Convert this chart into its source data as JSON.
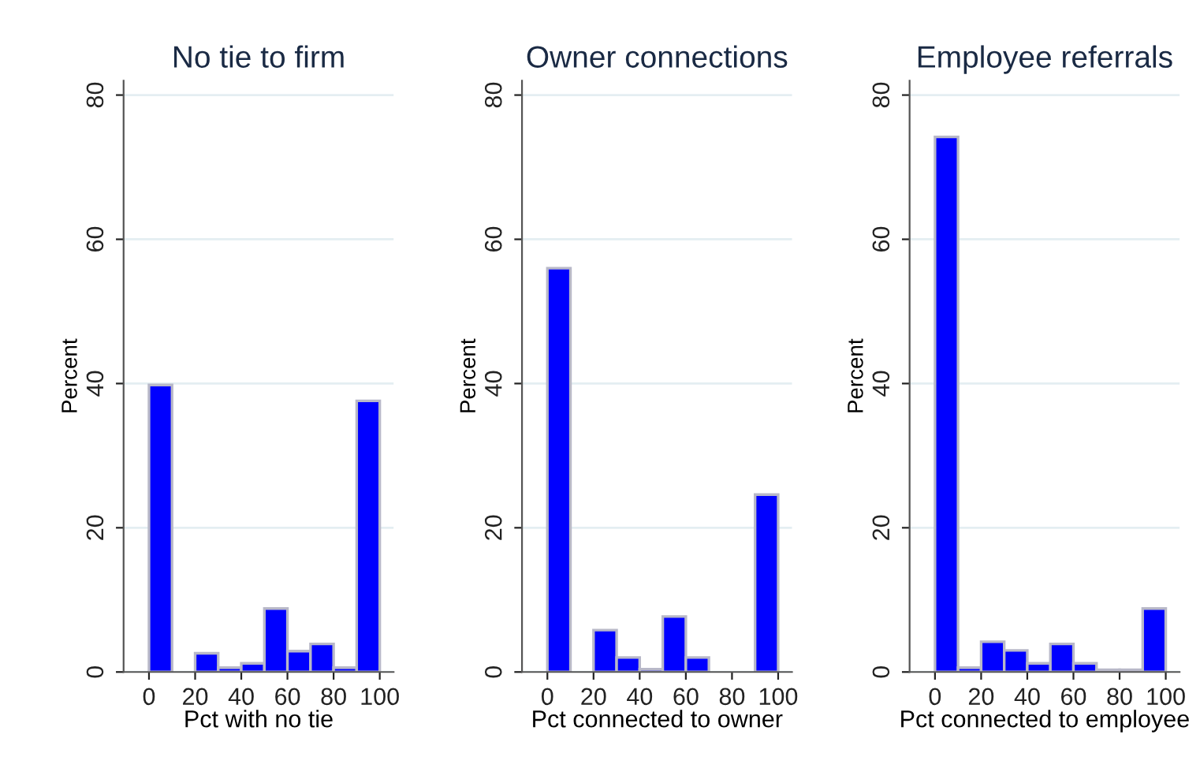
{
  "chart_data": [
    {
      "type": "histogram",
      "title": "No tie to firm",
      "xlabel": "Pct with no tie",
      "ylabel": "Percent",
      "bins": [
        0,
        10,
        20,
        30,
        40,
        50,
        60,
        70,
        80,
        90,
        100
      ],
      "values": [
        39.8,
        0,
        2.6,
        0.6,
        1.2,
        8.8,
        2.9,
        3.9,
        0.6,
        37.6
      ],
      "color": "#0000ff",
      "xlim": [
        -11,
        106
      ],
      "xticks": [
        0,
        20,
        40,
        60,
        80,
        100
      ],
      "ylim": [
        0,
        82
      ],
      "yticks": [
        0,
        20,
        40,
        60,
        80
      ],
      "grid": "y"
    },
    {
      "type": "histogram",
      "title": "Owner connections",
      "xlabel": "Pct connected to owner",
      "ylabel": "Percent",
      "bins": [
        0,
        10,
        20,
        30,
        40,
        50,
        60,
        70,
        80,
        90,
        100
      ],
      "values": [
        56.0,
        0,
        5.8,
        2.0,
        0.4,
        7.7,
        2.0,
        0,
        0,
        24.6
      ],
      "color": "#0000ff",
      "xlim": [
        -11,
        106
      ],
      "xticks": [
        0,
        20,
        40,
        60,
        80,
        100
      ],
      "ylim": [
        0,
        82
      ],
      "yticks": [
        0,
        20,
        40,
        60,
        80
      ],
      "grid": "y"
    },
    {
      "type": "histogram",
      "title": "Employee referrals",
      "xlabel": "Pct connected to employee",
      "ylabel": "Percent",
      "bins": [
        0,
        10,
        20,
        30,
        40,
        50,
        60,
        70,
        80,
        90,
        100
      ],
      "values": [
        74.2,
        0.6,
        4.2,
        3.0,
        1.2,
        3.9,
        1.2,
        0.3,
        0.3,
        8.8
      ],
      "color": "#0000ff",
      "xlim": [
        -11,
        106
      ],
      "xticks": [
        0,
        20,
        40,
        60,
        80,
        100
      ],
      "ylim": [
        0,
        82
      ],
      "yticks": [
        0,
        20,
        40,
        60,
        80
      ],
      "grid": "y"
    }
  ]
}
